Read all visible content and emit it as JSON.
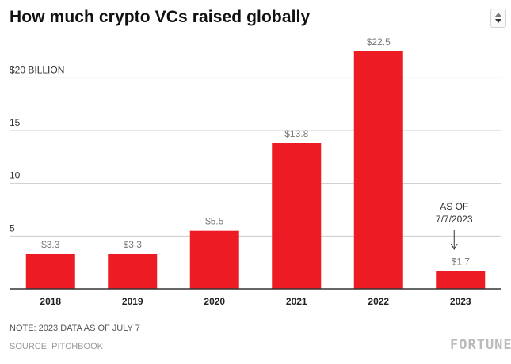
{
  "header": {
    "title": "How much crypto VCs raised globally"
  },
  "chart_data": {
    "type": "bar",
    "title": "How much crypto VCs raised globally",
    "xlabel": "",
    "ylabel": "",
    "categories": [
      "2018",
      "2019",
      "2020",
      "2021",
      "2022",
      "2023"
    ],
    "values": [
      3.3,
      3.3,
      5.5,
      13.8,
      22.5,
      1.7
    ],
    "value_labels": [
      "$3.3",
      "$3.3",
      "$5.5",
      "$13.8",
      "$22.5",
      "$1.7"
    ],
    "y_ticks": [
      5,
      10,
      15,
      20
    ],
    "y_tick_labels": [
      "5",
      "10",
      "15",
      "$20 BILLION"
    ],
    "ylim": [
      0,
      22.5
    ],
    "grid": true,
    "bar_color": "#ed1c24",
    "annotation": {
      "category": "2023",
      "lines": [
        "AS OF",
        "7/7/2023"
      ]
    }
  },
  "footer": {
    "note": "NOTE: 2023 DATA AS OF JULY 7",
    "source": "SOURCE: PITCHBOOK",
    "logo": "FORTUNE"
  },
  "icons": {
    "menu": "sort-arrows-icon"
  }
}
